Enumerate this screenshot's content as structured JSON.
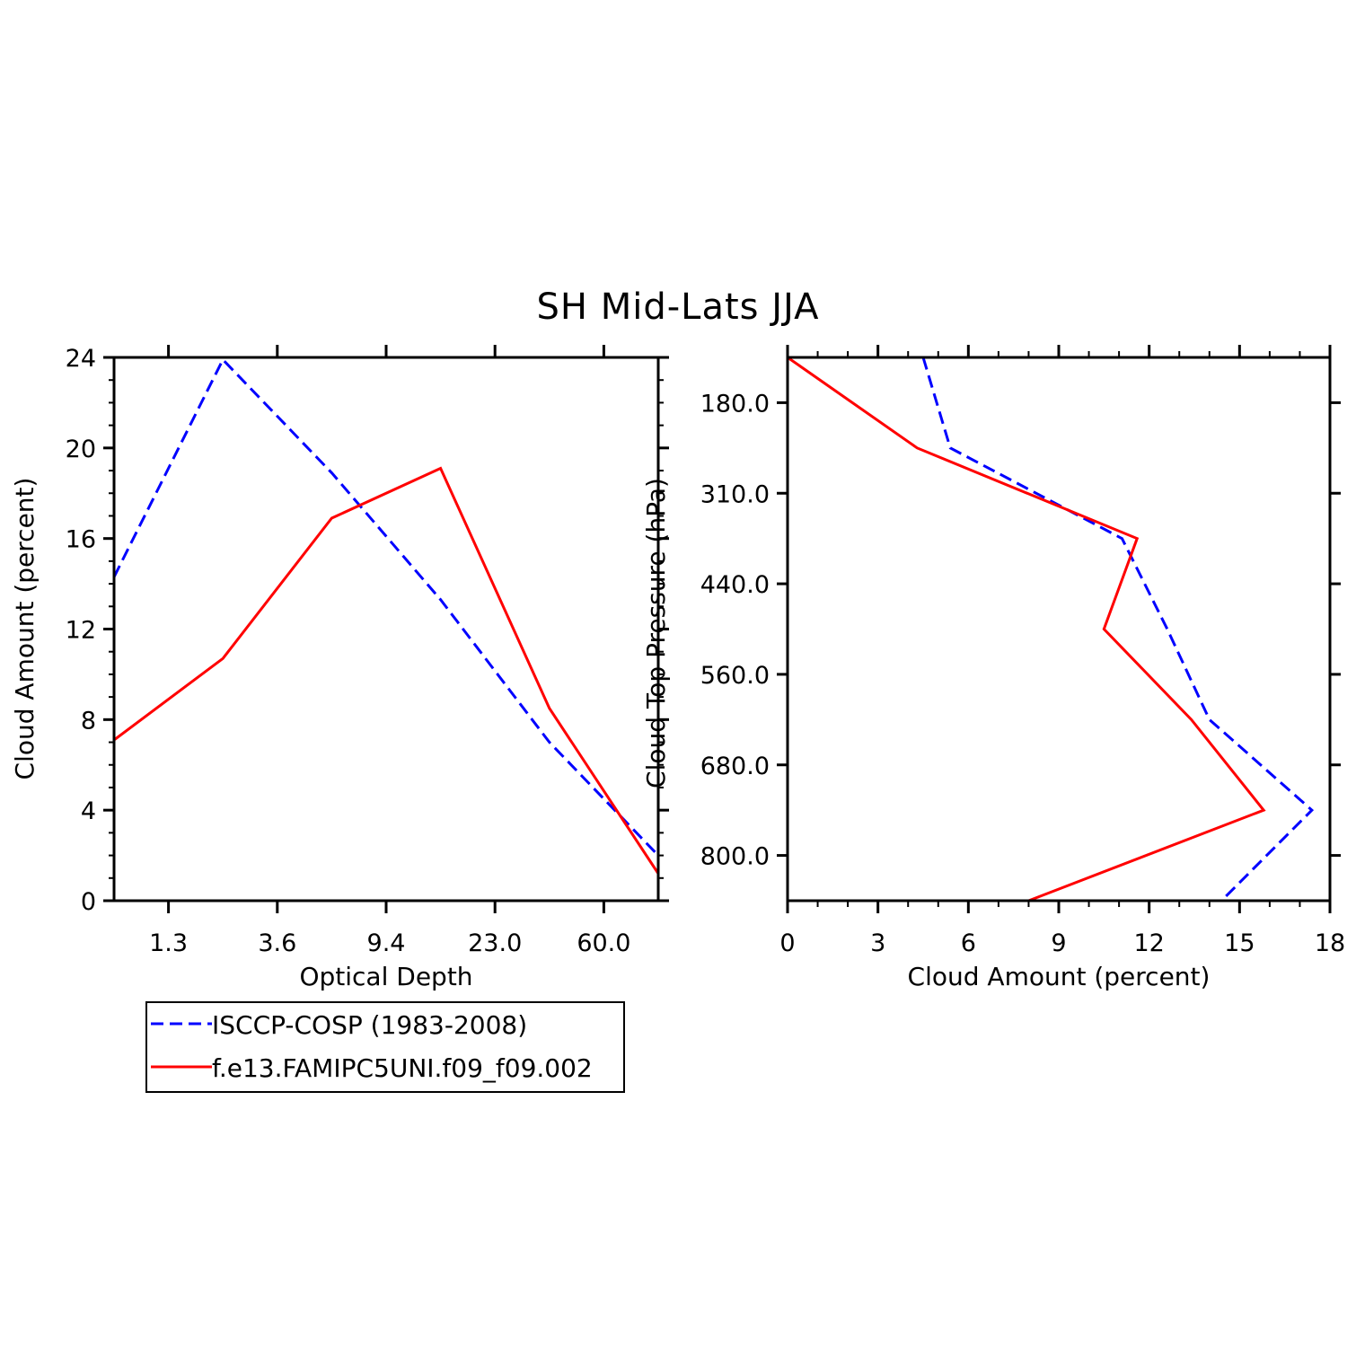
{
  "title": "SH Mid-Lats JJA",
  "colors": {
    "obs": "#0000ff",
    "model": "#ff0000",
    "axes": "#000000"
  },
  "legend": {
    "entries": [
      {
        "label": "ISCCP-COSP (1983-2008)",
        "color": "#0000ff",
        "style": "dashed"
      },
      {
        "label": "f.e13.FAMIPC5UNI.f09_f09.002",
        "color": "#ff0000",
        "style": "solid"
      }
    ]
  },
  "chart_data": [
    {
      "type": "line",
      "xlabel": "Optical Depth",
      "ylabel": "Cloud Amount (percent)",
      "x_tick_labels": [
        "1.3",
        "3.6",
        "9.4",
        "23.0",
        "60.0"
      ],
      "y_ticks": [
        0,
        4,
        8,
        12,
        16,
        20,
        24
      ],
      "ylim": [
        0,
        24
      ],
      "x": [
        0,
        1,
        2,
        3,
        4,
        5
      ],
      "series": [
        {
          "name": "ISCCP-COSP (1983-2008)",
          "color": "#0000ff",
          "dash": true,
          "values": [
            14.3,
            23.9,
            18.9,
            13.3,
            7.0,
            2.0
          ]
        },
        {
          "name": "f.e13.FAMIPC5UNI.f09_f09.002",
          "color": "#ff0000",
          "dash": false,
          "values": [
            7.1,
            10.7,
            16.9,
            19.1,
            8.5,
            1.2
          ]
        }
      ]
    },
    {
      "type": "line",
      "xlabel": "Cloud Amount (percent)",
      "ylabel": "Cloud Top Pressure (hPa)",
      "x_ticks": [
        0,
        3,
        6,
        9,
        12,
        15,
        18
      ],
      "xlim": [
        0,
        18
      ],
      "y_tick_labels": [
        "180.0",
        "310.0",
        "440.0",
        "560.0",
        "680.0",
        "800.0"
      ],
      "y": [
        0,
        1,
        2,
        3,
        4,
        5,
        6
      ],
      "series": [
        {
          "name": "ISCCP-COSP (1983-2008)",
          "color": "#0000ff",
          "dash": true,
          "values": [
            4.5,
            5.4,
            11.1,
            12.6,
            14.0,
            17.4,
            14.4
          ]
        },
        {
          "name": "f.e13.FAMIPC5UNI.f09_f09.002",
          "color": "#ff0000",
          "dash": false,
          "values": [
            0.0,
            4.3,
            11.6,
            10.5,
            13.4,
            15.8,
            8.0
          ]
        }
      ]
    }
  ]
}
